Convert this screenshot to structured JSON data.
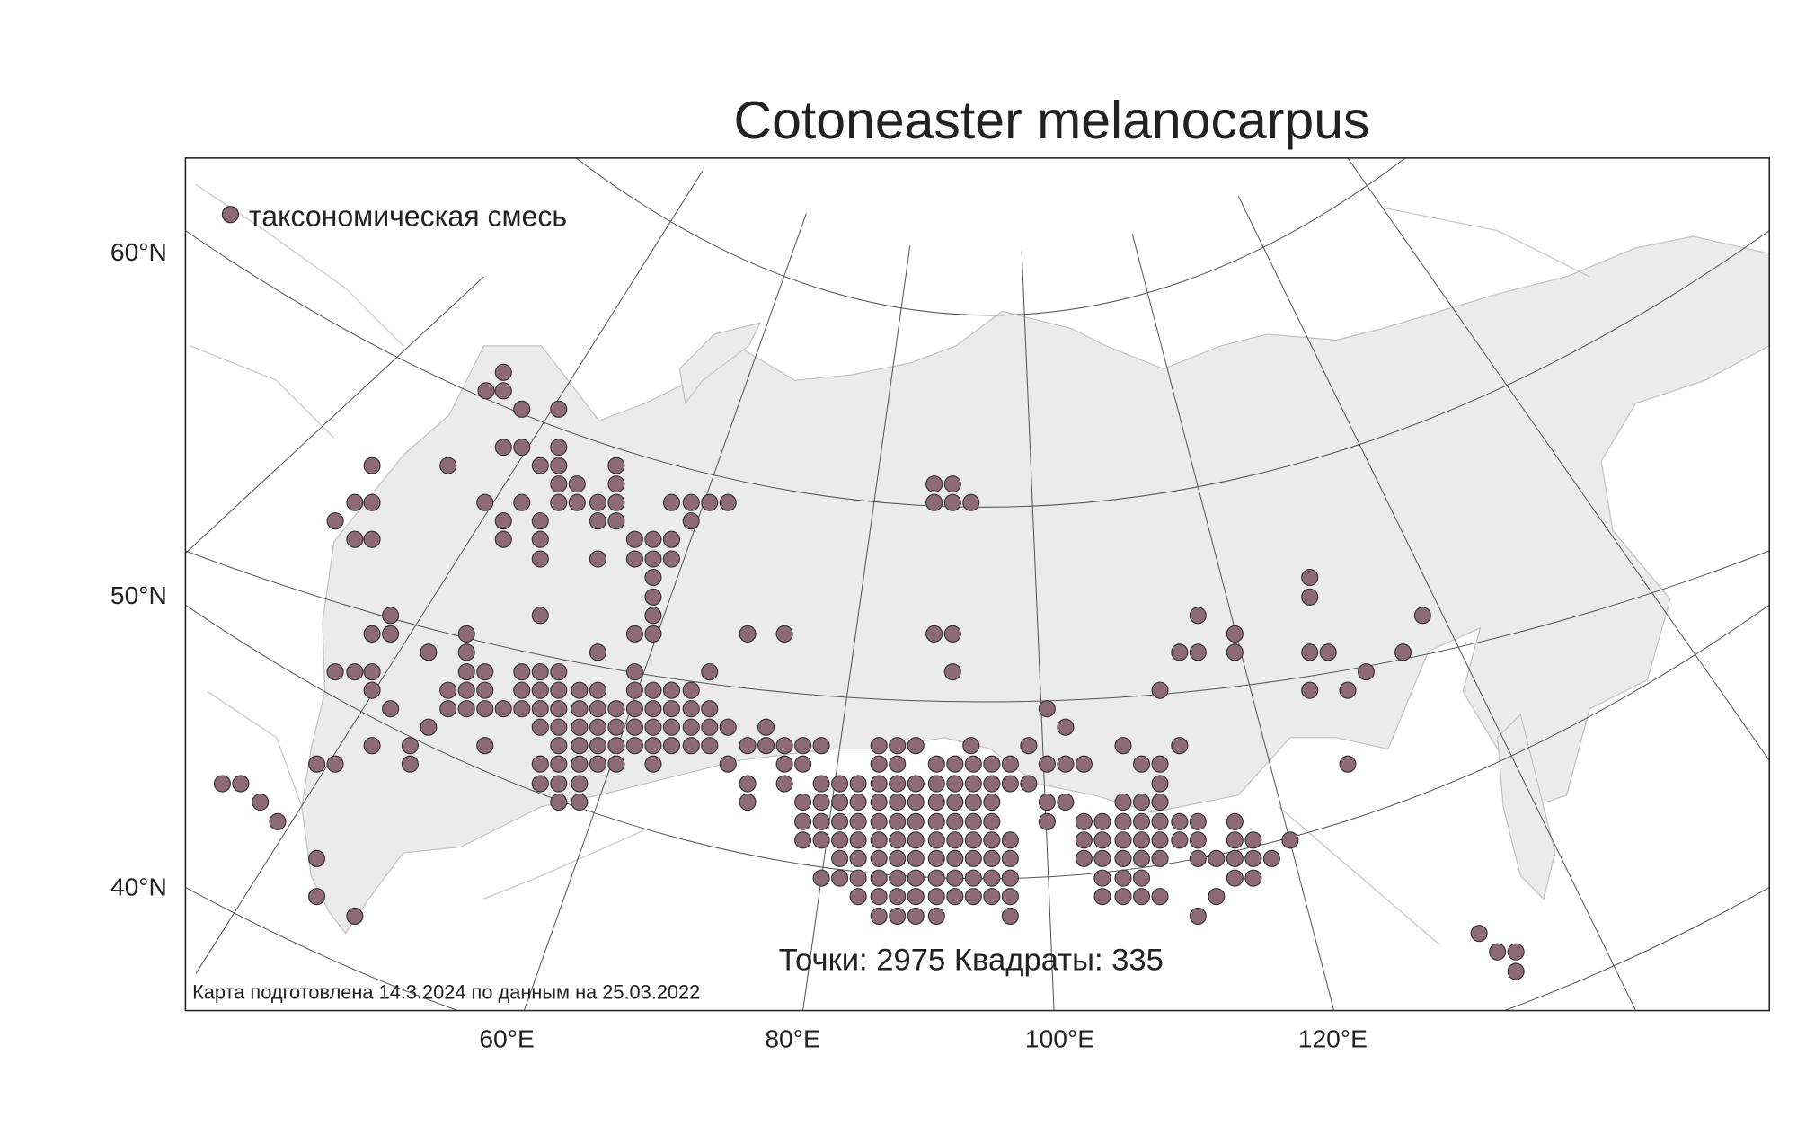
{
  "title": "Cotoneaster melanocarpus",
  "legend": {
    "label": "таксономическая смесь"
  },
  "axes": {
    "lat_labels": [
      "60°N",
      "50°N",
      "40°N"
    ],
    "lon_labels": [
      "60°E",
      "80°E",
      "100°E",
      "120°E"
    ]
  },
  "stats": "Точки: 2975 Квадраты: 335",
  "footer": "Карта подготовлена 14.3.2024 по данным на 25.03.2022"
}
